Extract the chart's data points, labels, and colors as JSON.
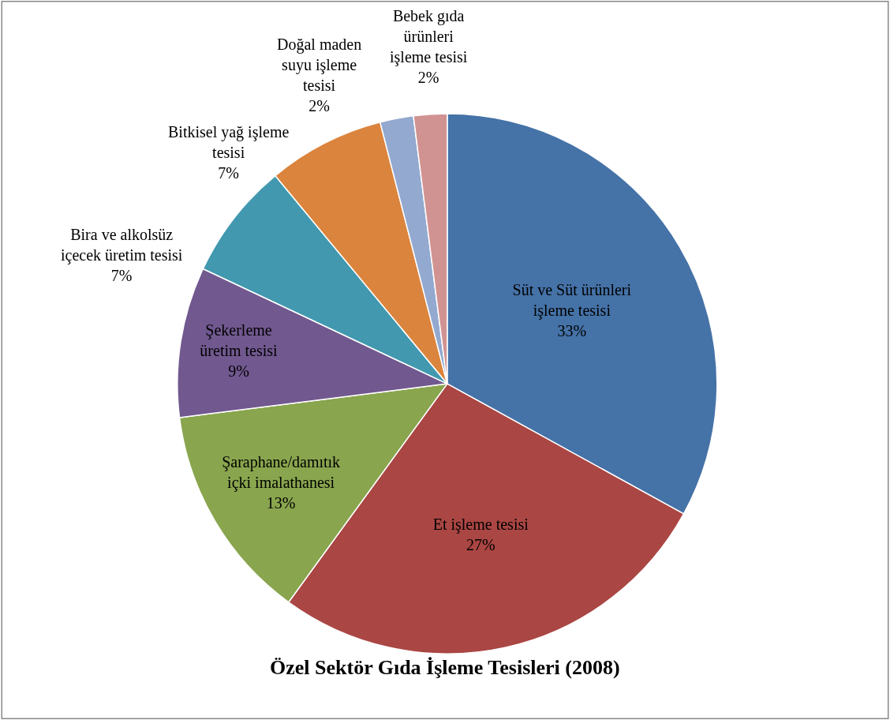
{
  "chart_data": {
    "type": "pie",
    "title": "Özel Sektör Gıda İşleme Tesisleri (2008)",
    "categories": [
      "Süt ve Süt ürünleri\nişleme tesisi",
      "Et işleme tesisi",
      "Şaraphane/damıtık\niçki imalathanesi",
      "Şekerleme\nüretim tesisi",
      "Bira ve alkolsüz\niçecek üretim tesisi",
      "Bitkisel yağ işleme\ntesisi",
      "Doğal maden\nsuyu işleme\ntesisi",
      "Bebek gıda\nürünleri\nişleme tesisi"
    ],
    "values": [
      33,
      27,
      13,
      9,
      7,
      7,
      2,
      2
    ],
    "value_labels": [
      "33%",
      "27%",
      "13%",
      "9%",
      "7%",
      "7%",
      "2%",
      "2%"
    ],
    "colors": [
      "#4572a7",
      "#aa4643",
      "#89a54e",
      "#71588f",
      "#4198af",
      "#db843d",
      "#93a9cf",
      "#d19392"
    ],
    "legend": false
  }
}
